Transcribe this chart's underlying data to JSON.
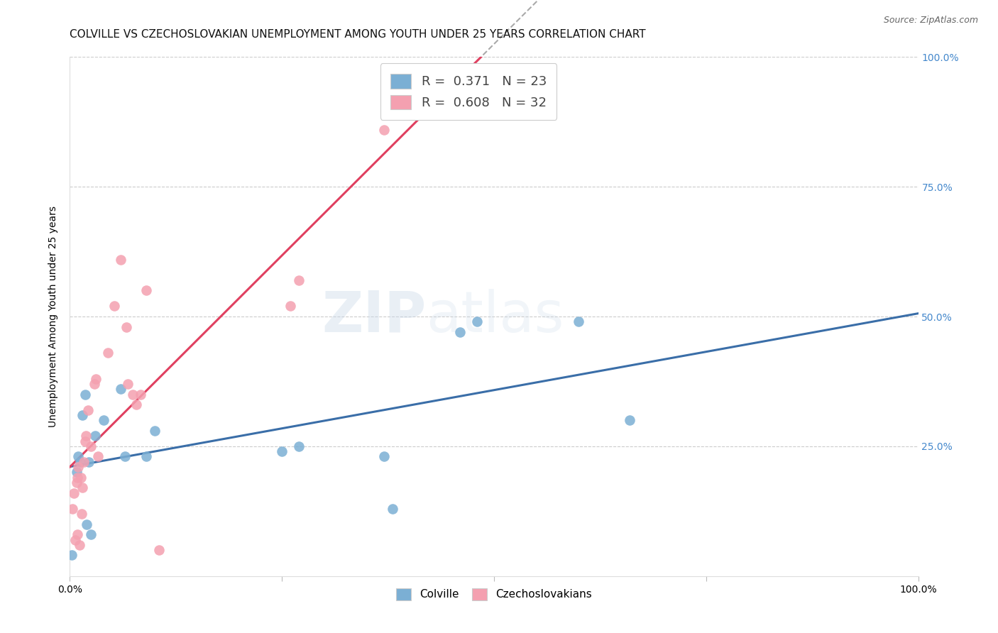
{
  "title": "COLVILLE VS CZECHOSLOVAKIAN UNEMPLOYMENT AMONG YOUTH UNDER 25 YEARS CORRELATION CHART",
  "source": "Source: ZipAtlas.com",
  "ylabel": "Unemployment Among Youth under 25 years",
  "colville_x": [
    0.002,
    0.008,
    0.01,
    0.012,
    0.015,
    0.018,
    0.02,
    0.022,
    0.025,
    0.03,
    0.04,
    0.06,
    0.065,
    0.09,
    0.1,
    0.25,
    0.27,
    0.37,
    0.38,
    0.46,
    0.48,
    0.6,
    0.66
  ],
  "colville_y": [
    0.04,
    0.2,
    0.23,
    0.22,
    0.31,
    0.35,
    0.1,
    0.22,
    0.08,
    0.27,
    0.3,
    0.36,
    0.23,
    0.23,
    0.28,
    0.24,
    0.25,
    0.23,
    0.13,
    0.47,
    0.49,
    0.49,
    0.3
  ],
  "czech_x": [
    0.003,
    0.005,
    0.006,
    0.008,
    0.009,
    0.009,
    0.01,
    0.011,
    0.013,
    0.014,
    0.015,
    0.016,
    0.018,
    0.019,
    0.021,
    0.025,
    0.029,
    0.031,
    0.033,
    0.045,
    0.052,
    0.06,
    0.067,
    0.068,
    0.074,
    0.078,
    0.083,
    0.09,
    0.105,
    0.26,
    0.27,
    0.37
  ],
  "czech_y": [
    0.13,
    0.16,
    0.07,
    0.18,
    0.19,
    0.08,
    0.21,
    0.06,
    0.19,
    0.12,
    0.17,
    0.22,
    0.26,
    0.27,
    0.32,
    0.25,
    0.37,
    0.38,
    0.23,
    0.43,
    0.52,
    0.61,
    0.48,
    0.37,
    0.35,
    0.33,
    0.35,
    0.55,
    0.05,
    0.52,
    0.57,
    0.86
  ],
  "colville_R": 0.371,
  "colville_N": 23,
  "czech_R": 0.608,
  "czech_N": 32,
  "colville_dot_color": "#7BAFD4",
  "czech_dot_color": "#F4A0B0",
  "colville_line_color": "#3A6EA8",
  "czech_line_color": "#E04060",
  "background_color": "#FFFFFF",
  "grid_color": "#CCCCCC",
  "right_axis_color": "#4488CC",
  "title_fontsize": 11,
  "axis_label_fontsize": 10,
  "tick_fontsize": 10,
  "legend_fontsize": 13,
  "watermark_text": "ZIPatlas",
  "xlim": [
    0.0,
    1.0
  ],
  "ylim": [
    0.0,
    1.0
  ],
  "xtick_vals": [
    0.0,
    0.25,
    0.5,
    0.75,
    1.0
  ],
  "xtick_labels": [
    "0.0%",
    "",
    "",
    "",
    "100.0%"
  ],
  "ytick_vals": [
    0.0,
    0.25,
    0.5,
    0.75,
    1.0
  ],
  "right_ytick_labels": [
    "",
    "25.0%",
    "50.0%",
    "75.0%",
    "100.0%"
  ],
  "bottom_legend_labels": [
    "Colville",
    "Czechoslovakians"
  ]
}
